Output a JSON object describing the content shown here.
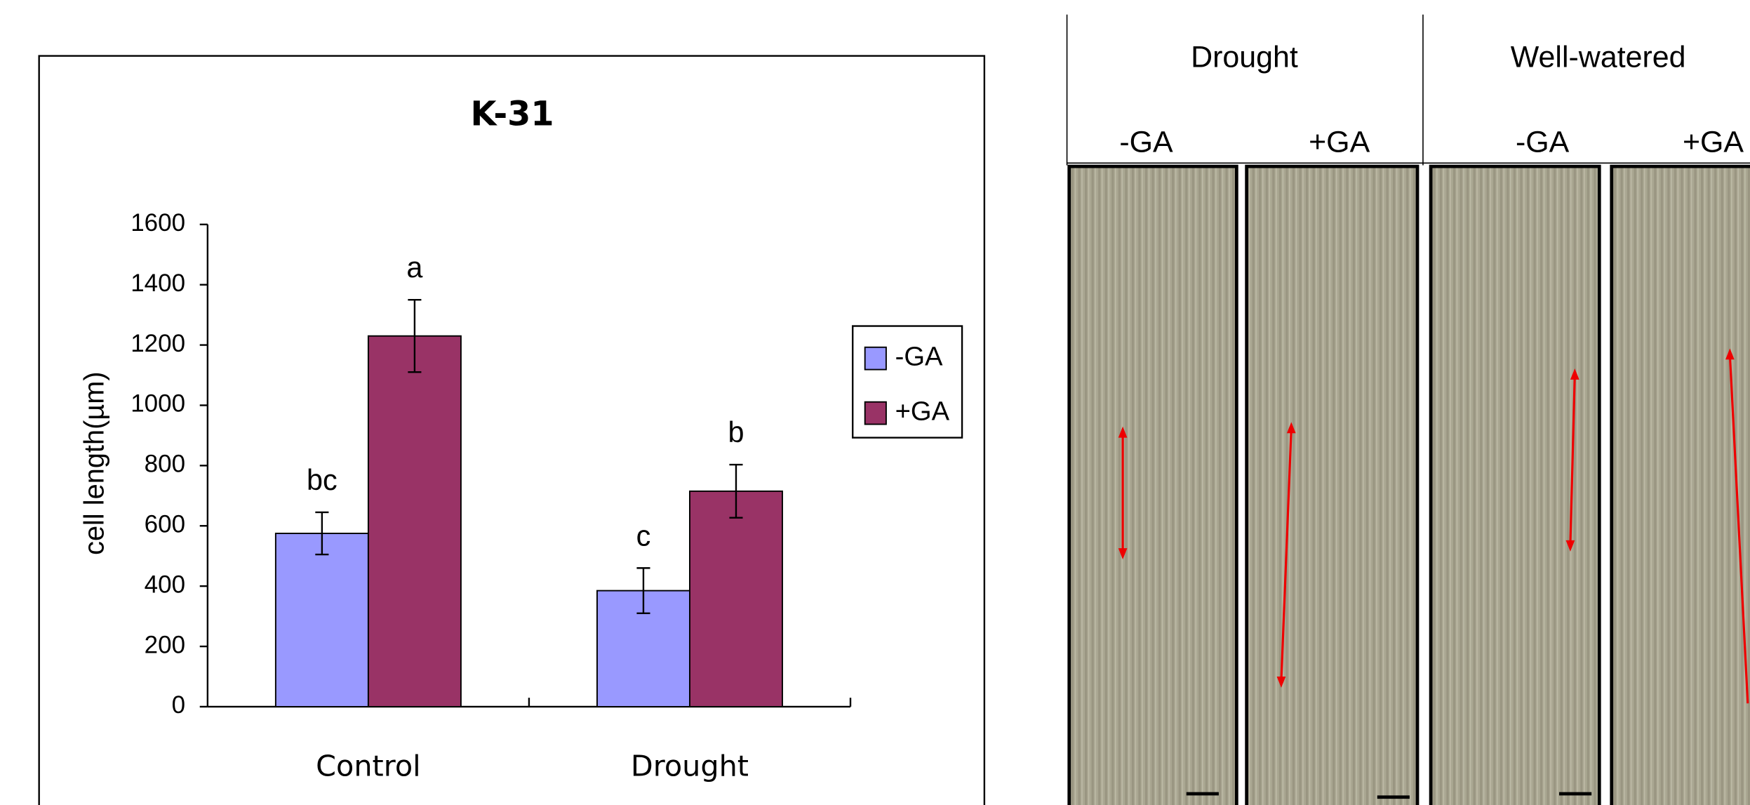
{
  "chart_data": {
    "type": "bar",
    "title": "K-31",
    "y_label": "cell length(µm)",
    "categories": [
      "Control",
      "Drought"
    ],
    "series": [
      {
        "name": "-GA",
        "color": "#9999ff",
        "values": [
          575,
          385
        ],
        "errors": [
          70,
          75
        ],
        "letters": [
          "bc",
          "c"
        ]
      },
      {
        "name": "+GA",
        "color": "#993366",
        "values": [
          1230,
          715
        ],
        "errors": [
          120,
          88
        ],
        "letters": [
          "a",
          "b"
        ]
      }
    ],
    "ylim": [
      0,
      1600
    ],
    "yticks": [
      0,
      200,
      400,
      600,
      800,
      1000,
      1200,
      1400,
      1600
    ],
    "grid": false,
    "legend": "right"
  },
  "panels": {
    "groups": [
      "Drought",
      "Well-watered"
    ],
    "columns": [
      "-GA",
      "+GA",
      "-GA",
      "+GA"
    ]
  }
}
